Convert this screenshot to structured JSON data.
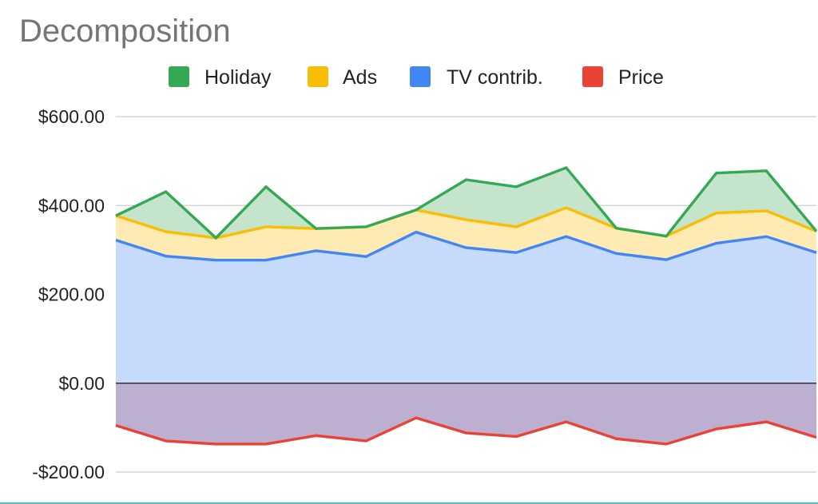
{
  "chart_data": {
    "type": "area",
    "title": "Decomposition",
    "legend_position": "top",
    "stacked": true,
    "grid": true,
    "ylim": [
      -200,
      600
    ],
    "y_ticks": [
      600,
      400,
      200,
      0,
      -200
    ],
    "y_tick_labels": [
      "$600.00",
      "$400.00",
      "$200.00",
      "$0.00",
      "-$200.00"
    ],
    "x": [
      1,
      2,
      3,
      4,
      5,
      6,
      7,
      8,
      9,
      10,
      11,
      12,
      13,
      14,
      15
    ],
    "series": [
      {
        "name": "Holiday",
        "color": "#34a853",
        "values": [
          0,
          90,
          0,
          90,
          0,
          0,
          0,
          90,
          90,
          90,
          0,
          0,
          90,
          90,
          0
        ]
      },
      {
        "name": "Ads",
        "color": "#fbbc04",
        "values": [
          55,
          55,
          50,
          75,
          50,
          67,
          50,
          63,
          58,
          65,
          57,
          53,
          68,
          58,
          48
        ]
      },
      {
        "name": "TV contrib.",
        "color": "#4285f4",
        "values": [
          322,
          286,
          277,
          277,
          298,
          285,
          340,
          305,
          294,
          330,
          292,
          278,
          315,
          330,
          294
        ]
      },
      {
        "name": "Price",
        "color": "#ea4335",
        "values": [
          -95,
          -130,
          -137,
          -137,
          -118,
          -130,
          -78,
          -112,
          -120,
          -87,
          -125,
          -137,
          -103,
          -87,
          -122
        ]
      }
    ]
  }
}
